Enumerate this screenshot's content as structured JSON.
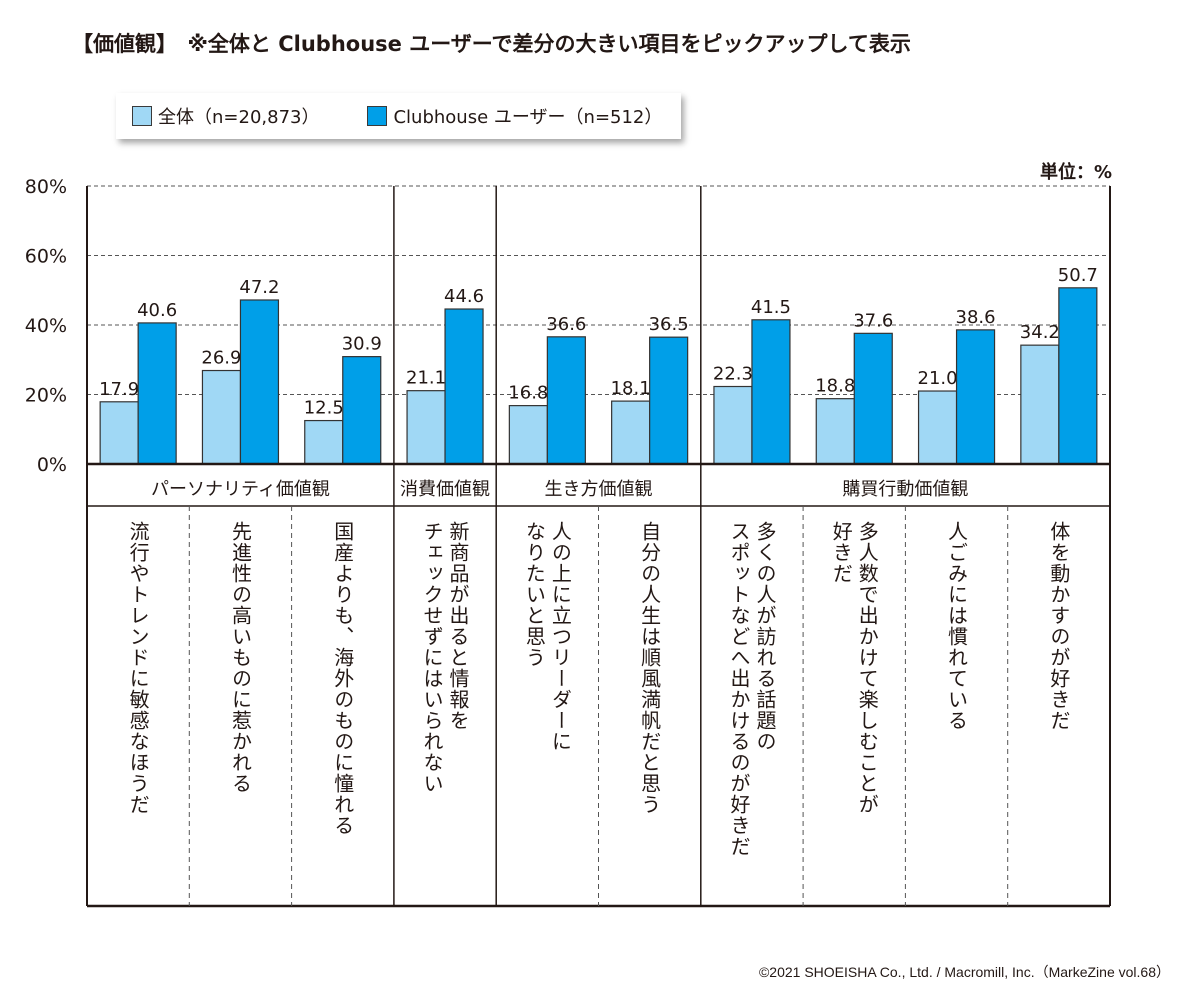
{
  "title": "【価値観】　※全体と Clubhouse ユーザーで差分の大きい項目をピックアップして表示",
  "unit_label": "単位：%",
  "copyright": "©2021 SHOEISHA Co., Ltd. / Macromill, Inc.（MarkeZine vol.68）",
  "colors": {
    "overall": "#a0d8f5",
    "clubhouse": "#009fe8",
    "axis": "#231815"
  },
  "chart_data": {
    "type": "bar",
    "title": "【価値観】　※全体と Clubhouse ユーザーで差分の大きい項目をピックアップして表示",
    "xlabel": "",
    "ylabel": "",
    "unit": "%",
    "ylim": [
      0,
      80
    ],
    "yticks": [
      0,
      20,
      40,
      60,
      80
    ],
    "ytick_labels": [
      "0%",
      "20%",
      "40%",
      "60%",
      "80%"
    ],
    "grid": true,
    "legend_position": "top-left",
    "groups": [
      {
        "label": "パーソナリティ価値観",
        "count": 3
      },
      {
        "label": "消費価値観",
        "count": 1
      },
      {
        "label": "生き方価値観",
        "count": 2
      },
      {
        "label": "購買行動価値観",
        "count": 4
      }
    ],
    "categories": [
      "流行やトレンドに敏感なほうだ",
      "先進性の高いものに惹かれる",
      "国産よりも、海外のものに憧れる",
      "新商品が出ると情報を\nチェックせずにはいられない",
      "人の上に立つリーダーに\nなりたいと思う",
      "自分の人生は順風満帆だと思う",
      "多くの人が訪れる話題の\nスポットなどへ出かけるのが好きだ",
      "多人数で出かけて楽しむことが\n好きだ",
      "人ごみには慣れている",
      "体を動かすのが好きだ"
    ],
    "series": [
      {
        "name": "全体（n=20,873）",
        "values": [
          17.9,
          26.9,
          12.5,
          21.1,
          16.8,
          18.1,
          22.3,
          18.8,
          21.0,
          34.2
        ],
        "labels": [
          "17.9",
          "26.9",
          "12.5",
          "21.1",
          "16.8",
          "18.1",
          "22.3",
          "18.8",
          "21.0",
          "34.2"
        ]
      },
      {
        "name": "Clubhouse ユーザー（n=512）",
        "values": [
          40.6,
          47.2,
          30.9,
          44.6,
          36.6,
          36.5,
          41.5,
          37.6,
          38.6,
          50.7
        ],
        "labels": [
          "40.6",
          "47.2",
          "30.9",
          "44.6",
          "36.6",
          "36.5",
          "41.5",
          "37.6",
          "38.6",
          "50.7"
        ]
      }
    ]
  }
}
